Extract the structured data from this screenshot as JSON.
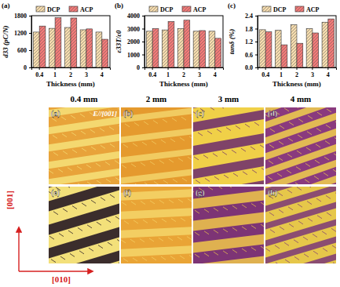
{
  "chart_data": [
    {
      "type": "bar",
      "title": "(a)",
      "x_label": "Thickness (mm)",
      "y_label": "d33 (pC/N)",
      "categories": [
        "0.4",
        "1",
        "2",
        "3",
        "4"
      ],
      "series": [
        {
          "name": "DCP",
          "color": "#f5dcae",
          "values": [
            1230,
            1360,
            1390,
            1310,
            1230
          ]
        },
        {
          "name": "ACP",
          "color": "#f27a78",
          "values": [
            1440,
            1730,
            1720,
            1340,
            980
          ]
        }
      ],
      "ylim": [
        0,
        1800
      ],
      "yticks": [
        0,
        600,
        1200,
        1800
      ],
      "legend": "top"
    },
    {
      "type": "bar",
      "title": "(b)",
      "x_label": "Thickness (mm)",
      "y_label": "ε33T/ε0",
      "categories": [
        "0.4",
        "1",
        "2",
        "3",
        "4"
      ],
      "series": [
        {
          "name": "DCP",
          "color": "#f5dcae",
          "values": [
            2800,
            2900,
            3000,
            2800,
            2800
          ]
        },
        {
          "name": "ACP",
          "color": "#f27a78",
          "values": [
            3000,
            3550,
            3650,
            2850,
            2250
          ]
        }
      ],
      "ylim": [
        0,
        4000
      ],
      "yticks": [
        0,
        1000,
        2000,
        3000,
        4000
      ],
      "legend": "top"
    },
    {
      "type": "bar",
      "title": "(c)",
      "x_label": "Thickness (mm)",
      "y_label": "tanδ (%)",
      "categories": [
        "0.4",
        "1",
        "2",
        "3",
        "4"
      ],
      "series": [
        {
          "name": "DCP",
          "color": "#f5dcae",
          "values": [
            1.75,
            1.72,
            1.98,
            1.8,
            2.1
          ]
        },
        {
          "name": "ACP",
          "color": "#f27a78",
          "values": [
            1.65,
            1.05,
            1.12,
            1.6,
            2.25
          ]
        }
      ],
      "ylim": [
        0,
        2.4
      ],
      "yticks": [
        {
          "value": 0,
          "label": "0.0"
        },
        0.6,
        1.2,
        1.8,
        2.4
      ],
      "legend": "top"
    }
  ],
  "images": {
    "columns": [
      "0.4 mm",
      "2 mm",
      "3 mm",
      "4 mm"
    ],
    "field_label": "E//[001]",
    "panel_labels": [
      "(a)",
      "(b)",
      "(c)",
      "(d)",
      "(e)",
      "(f)",
      "(g)",
      "(h)"
    ],
    "vertical_axis": "[001]",
    "horizontal_axis": "[010]"
  }
}
